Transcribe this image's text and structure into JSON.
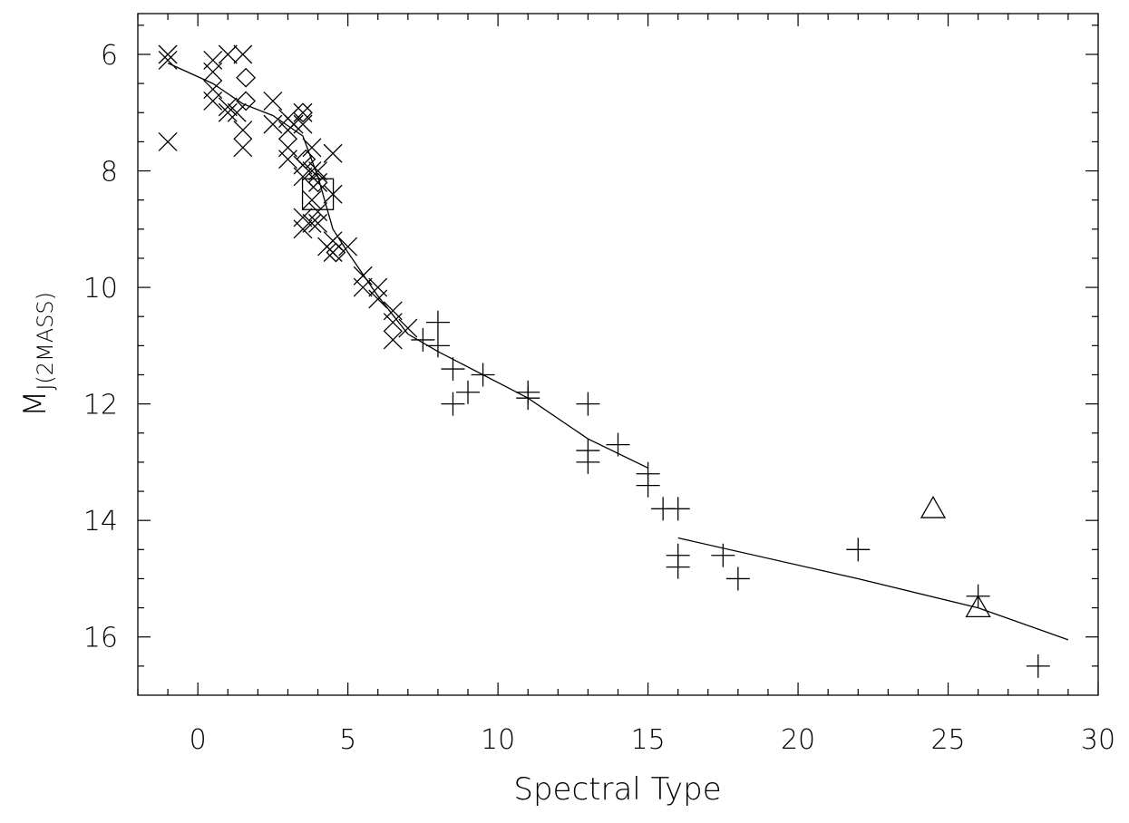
{
  "chart_data": {
    "type": "scatter",
    "xlabel": "Spectral Type",
    "ylabel_main": "M",
    "ylabel_sub": "J(2MASS)",
    "xlim": [
      -2,
      30
    ],
    "ylim": [
      17,
      5.3
    ],
    "y_inverted": true,
    "x_ticks": [
      0,
      5,
      10,
      15,
      20,
      25,
      30
    ],
    "x_tick_labels": [
      "0",
      "5",
      "10",
      "15",
      "20",
      "25",
      "30"
    ],
    "y_ticks": [
      6,
      8,
      10,
      12,
      14,
      16
    ],
    "y_tick_labels": [
      "6",
      "8",
      "10",
      "12",
      "14",
      "16"
    ],
    "grid": false,
    "series": [
      {
        "marker": "x",
        "points": [
          [
            -1,
            6.0
          ],
          [
            -1,
            6.1
          ],
          [
            -1,
            7.5
          ],
          [
            0.5,
            6.1
          ],
          [
            0.5,
            6.3
          ],
          [
            0.5,
            6.6
          ],
          [
            0.5,
            6.8
          ],
          [
            1,
            6.0
          ],
          [
            1,
            6.9
          ],
          [
            1,
            7.0
          ],
          [
            1.3,
            7.0
          ],
          [
            1.5,
            6.0
          ],
          [
            1.5,
            7.3
          ],
          [
            1.5,
            7.6
          ],
          [
            2.5,
            6.8
          ],
          [
            2.5,
            7.2
          ],
          [
            3,
            7.1
          ],
          [
            3,
            7.3
          ],
          [
            3,
            7.6
          ],
          [
            3,
            7.8
          ],
          [
            3.2,
            7.2
          ],
          [
            3.5,
            7.0
          ],
          [
            3.5,
            7.2
          ],
          [
            3.5,
            7.9
          ],
          [
            3.5,
            8.1
          ],
          [
            3.5,
            8.8
          ],
          [
            3.5,
            9.0
          ],
          [
            3.8,
            7.6
          ],
          [
            3.8,
            8.0
          ],
          [
            3.8,
            8.5
          ],
          [
            3.8,
            8.9
          ],
          [
            4,
            8.0
          ],
          [
            4,
            8.2
          ],
          [
            4,
            8.7
          ],
          [
            4,
            8.9
          ],
          [
            4.5,
            7.7
          ],
          [
            4.5,
            8.4
          ],
          [
            4.5,
            9.2
          ],
          [
            4.5,
            9.4
          ],
          [
            4.3,
            9.3
          ],
          [
            5,
            9.3
          ],
          [
            5.5,
            9.8
          ],
          [
            5.5,
            10.0
          ],
          [
            6,
            10.0
          ],
          [
            6,
            10.2
          ],
          [
            6.5,
            10.4
          ],
          [
            6.5,
            10.6
          ],
          [
            6.5,
            10.9
          ],
          [
            7,
            10.7
          ]
        ]
      },
      {
        "marker": "diamond",
        "points": [
          [
            1.6,
            6.4
          ],
          [
            1.6,
            6.8
          ],
          [
            3.5,
            7.0
          ],
          [
            3.6,
            7.8
          ],
          [
            4.0,
            8.2
          ],
          [
            4.6,
            9.4
          ]
        ]
      },
      {
        "marker": "square",
        "points": [
          [
            4.0,
            8.4
          ]
        ]
      },
      {
        "marker": "plus",
        "points": [
          [
            7.5,
            10.9
          ],
          [
            8,
            10.6
          ],
          [
            8,
            11.0
          ],
          [
            8.5,
            11.4
          ],
          [
            8.5,
            12.0
          ],
          [
            9,
            11.8
          ],
          [
            9.5,
            11.5
          ],
          [
            11,
            11.8
          ],
          [
            11,
            11.9
          ],
          [
            13,
            12.0
          ],
          [
            13,
            12.8
          ],
          [
            13,
            13.0
          ],
          [
            14,
            12.7
          ],
          [
            15,
            13.2
          ],
          [
            15,
            13.4
          ],
          [
            15.5,
            13.8
          ],
          [
            16,
            13.8
          ],
          [
            16,
            14.6
          ],
          [
            16,
            14.8
          ],
          [
            17.5,
            14.6
          ],
          [
            18,
            15.0
          ],
          [
            22,
            14.5
          ],
          [
            26,
            15.3
          ],
          [
            28,
            16.5
          ]
        ]
      },
      {
        "marker": "triangle",
        "points": [
          [
            24.5,
            13.8
          ],
          [
            26,
            15.5
          ]
        ]
      }
    ],
    "fit_lines": [
      [
        [
          -1,
          6.15
        ],
        [
          0.5,
          6.5
        ],
        [
          1.5,
          6.85
        ],
        [
          2.5,
          7.05
        ],
        [
          3.5,
          7.4
        ],
        [
          4,
          8.1
        ],
        [
          4.5,
          9.0
        ],
        [
          5,
          9.4
        ],
        [
          6,
          10.15
        ],
        [
          7,
          10.8
        ],
        [
          8,
          11.1
        ]
      ],
      [
        [
          8,
          11.1
        ],
        [
          11,
          11.9
        ],
        [
          13,
          12.6
        ],
        [
          15,
          13.1
        ]
      ],
      [
        [
          16,
          14.3
        ],
        [
          22,
          15.0
        ],
        [
          26,
          15.5
        ],
        [
          29,
          16.05
        ]
      ]
    ]
  }
}
